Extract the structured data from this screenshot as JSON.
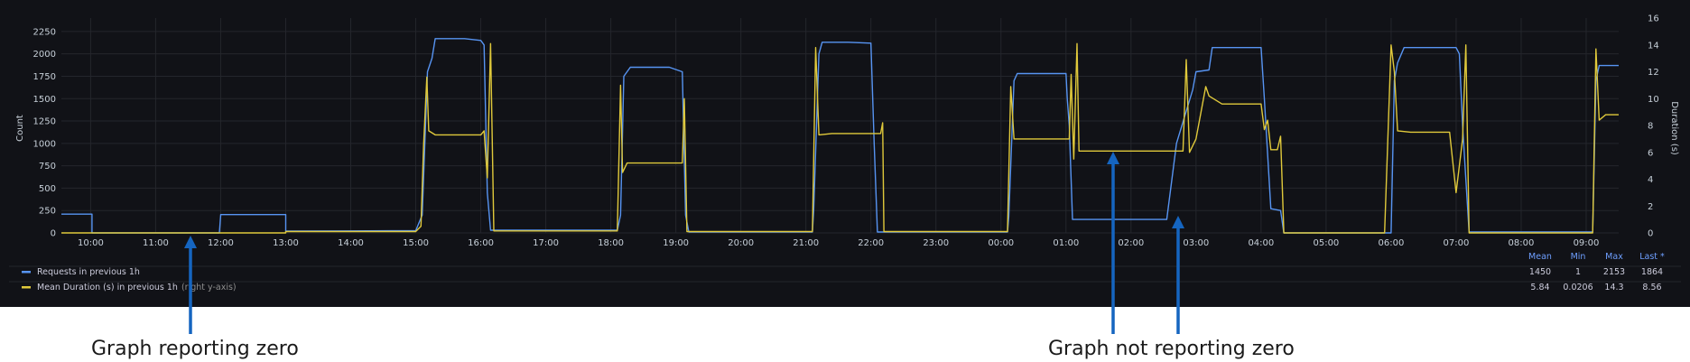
{
  "chart_data": {
    "type": "line",
    "x_ticks": [
      "10:00",
      "11:00",
      "12:00",
      "13:00",
      "14:00",
      "15:00",
      "16:00",
      "17:00",
      "18:00",
      "19:00",
      "20:00",
      "21:00",
      "22:00",
      "23:00",
      "00:00",
      "01:00",
      "02:00",
      "03:00",
      "04:00",
      "05:00",
      "06:00",
      "07:00",
      "08:00",
      "09:00"
    ],
    "xlim": [
      9.55,
      33.5
    ],
    "left_axis": {
      "label": "Count",
      "ticks": [
        "0",
        "250",
        "500",
        "750",
        "1000",
        "1250",
        "1500",
        "1750",
        "2000",
        "2250"
      ],
      "ylim": [
        0,
        2400
      ]
    },
    "right_axis": {
      "label": "Duration (s)",
      "ticks": [
        "0",
        "2",
        "4",
        "6",
        "8",
        "10",
        "12",
        "14",
        "16"
      ],
      "ylim": [
        0,
        16
      ]
    },
    "grid": true,
    "series": [
      {
        "name": "Requests in previous 1h",
        "axis": "left",
        "color": "#5794f2",
        "points": [
          [
            9.55,
            210
          ],
          [
            10.02,
            210
          ],
          [
            10.02,
            0
          ],
          [
            11.98,
            0
          ],
          [
            12.0,
            205
          ],
          [
            13.0,
            205
          ],
          [
            13.0,
            20
          ],
          [
            15.0,
            25
          ],
          [
            15.1,
            200
          ],
          [
            15.18,
            1800
          ],
          [
            15.25,
            1950
          ],
          [
            15.3,
            2170
          ],
          [
            15.75,
            2170
          ],
          [
            16.0,
            2150
          ],
          [
            16.05,
            2100
          ],
          [
            16.1,
            450
          ],
          [
            16.15,
            30
          ],
          [
            18.1,
            30
          ],
          [
            18.15,
            200
          ],
          [
            18.2,
            1750
          ],
          [
            18.3,
            1850
          ],
          [
            18.9,
            1850
          ],
          [
            19.1,
            1800
          ],
          [
            19.15,
            200
          ],
          [
            19.2,
            10
          ],
          [
            21.1,
            10
          ],
          [
            21.12,
            250
          ],
          [
            21.2,
            2000
          ],
          [
            21.25,
            2130
          ],
          [
            21.65,
            2130
          ],
          [
            22.0,
            2120
          ],
          [
            22.05,
            1000
          ],
          [
            22.1,
            10
          ],
          [
            24.1,
            10
          ],
          [
            24.12,
            180
          ],
          [
            24.2,
            1700
          ],
          [
            24.25,
            1780
          ],
          [
            25.0,
            1780
          ],
          [
            25.02,
            1500
          ],
          [
            25.05,
            1200
          ],
          [
            25.1,
            150
          ],
          [
            26.55,
            150
          ],
          [
            26.7,
            1000
          ],
          [
            26.95,
            1600
          ],
          [
            27.0,
            1800
          ],
          [
            27.2,
            1820
          ],
          [
            27.25,
            2070
          ],
          [
            28.0,
            2070
          ],
          [
            28.05,
            1500
          ],
          [
            28.15,
            270
          ],
          [
            28.3,
            250
          ],
          [
            28.35,
            0
          ],
          [
            30.0,
            0
          ],
          [
            30.05,
            1700
          ],
          [
            30.1,
            1900
          ],
          [
            30.2,
            2070
          ],
          [
            31.0,
            2070
          ],
          [
            31.05,
            2000
          ],
          [
            31.1,
            1200
          ],
          [
            31.15,
            600
          ],
          [
            31.2,
            10
          ],
          [
            33.1,
            10
          ],
          [
            33.15,
            1700
          ],
          [
            33.2,
            1870
          ],
          [
            33.5,
            1870
          ]
        ]
      },
      {
        "name": "Mean Duration (s) in previous 1h",
        "axis": "right",
        "color": "#e0c93b",
        "points": [
          [
            9.55,
            0
          ],
          [
            13.0,
            0
          ],
          [
            13.0,
            0.1
          ],
          [
            15.0,
            0.1
          ],
          [
            15.08,
            0.5
          ],
          [
            15.12,
            6.5
          ],
          [
            15.17,
            11.6
          ],
          [
            15.2,
            7.6
          ],
          [
            15.3,
            7.3
          ],
          [
            16.0,
            7.3
          ],
          [
            16.05,
            7.6
          ],
          [
            16.1,
            4.1
          ],
          [
            16.15,
            14.1
          ],
          [
            16.2,
            0.15
          ],
          [
            18.1,
            0.15
          ],
          [
            18.15,
            11.0
          ],
          [
            18.18,
            4.5
          ],
          [
            18.25,
            5.2
          ],
          [
            19.1,
            5.2
          ],
          [
            19.13,
            10.0
          ],
          [
            19.17,
            0.1
          ],
          [
            21.1,
            0.1
          ],
          [
            21.15,
            13.8
          ],
          [
            21.2,
            7.3
          ],
          [
            21.4,
            7.4
          ],
          [
            22.15,
            7.4
          ],
          [
            22.18,
            8.2
          ],
          [
            22.2,
            0.1
          ],
          [
            24.1,
            0.1
          ],
          [
            24.15,
            10.9
          ],
          [
            24.2,
            7.0
          ],
          [
            25.05,
            7.0
          ],
          [
            25.08,
            11.8
          ],
          [
            25.12,
            5.5
          ],
          [
            25.17,
            14.1
          ],
          [
            25.2,
            6.1
          ],
          [
            26.8,
            6.1
          ],
          [
            26.85,
            12.9
          ],
          [
            26.9,
            6.0
          ],
          [
            27.0,
            7.0
          ],
          [
            27.15,
            10.9
          ],
          [
            27.2,
            10.2
          ],
          [
            27.4,
            9.6
          ],
          [
            28.0,
            9.6
          ],
          [
            28.05,
            7.7
          ],
          [
            28.1,
            8.4
          ],
          [
            28.15,
            6.2
          ],
          [
            28.25,
            6.2
          ],
          [
            28.3,
            7.2
          ],
          [
            28.35,
            0
          ],
          [
            29.9,
            0
          ],
          [
            30.0,
            14.0
          ],
          [
            30.05,
            12.0
          ],
          [
            30.1,
            7.6
          ],
          [
            30.3,
            7.5
          ],
          [
            30.9,
            7.5
          ],
          [
            31.0,
            3.0
          ],
          [
            31.1,
            7.0
          ],
          [
            31.15,
            14.0
          ],
          [
            31.2,
            0
          ],
          [
            33.1,
            0
          ],
          [
            33.15,
            13.7
          ],
          [
            33.2,
            8.4
          ],
          [
            33.3,
            8.8
          ],
          [
            33.5,
            8.8
          ]
        ]
      }
    ],
    "legend": {
      "placement": "bottom",
      "suffix": "(right y-axis)",
      "columns": [
        "Mean",
        "Min",
        "Max",
        "Last *"
      ],
      "rows": [
        {
          "name": "Requests in previous 1h",
          "color": "#5794f2",
          "values": [
            "1450",
            "1",
            "2153",
            "1864"
          ]
        },
        {
          "name": "Mean Duration (s) in previous 1h",
          "color": "#e0c93b",
          "values": [
            "5.84",
            "0.0206",
            "14.3",
            "8.56"
          ]
        }
      ]
    }
  },
  "annotations": {
    "left": "Graph reporting zero",
    "right": "Graph not reporting zero",
    "arrow_color": "#1565c0"
  }
}
